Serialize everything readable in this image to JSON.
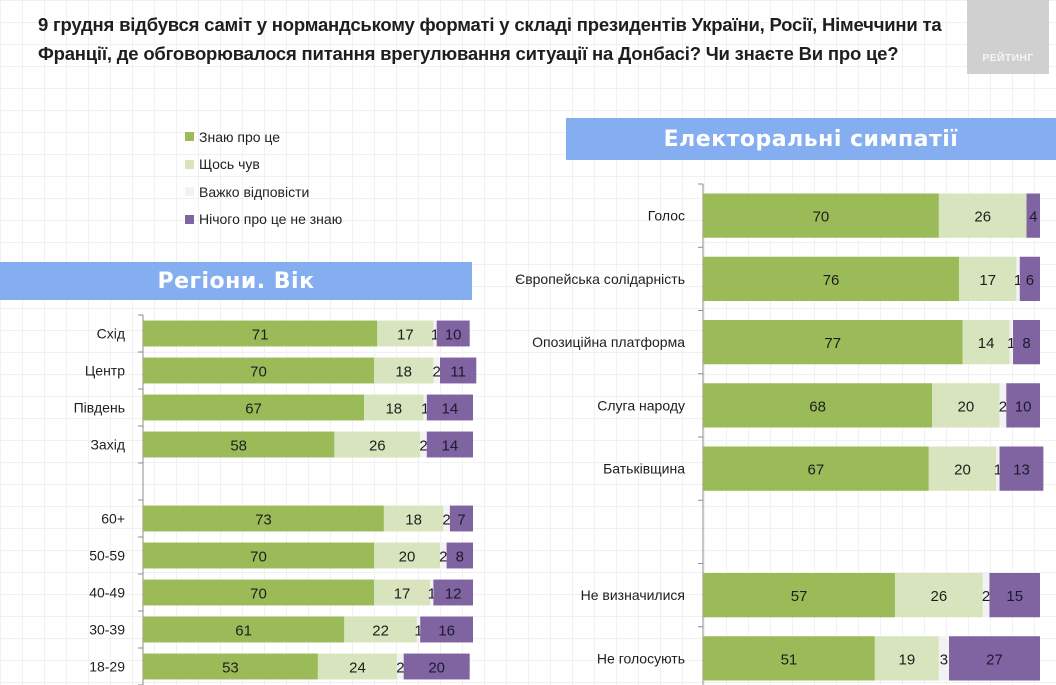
{
  "header": {
    "title": "9 грудня відбувся саміт у нормандському форматі у складі президентів України, Росії, Німеччини та Франції, де обговорювалося питання врегулювання ситуації на Донбасі? Чи знаєте Ви про це?",
    "logo_text": "РЕЙТИНГ"
  },
  "legend": [
    {
      "label": "Знаю про це",
      "color": "#9bbb59"
    },
    {
      "label": "Щось чув",
      "color": "#d7e4bd"
    },
    {
      "label": "Важко відповісти",
      "color": "#f2f2f2"
    },
    {
      "label": "Нічого про це не знаю",
      "color": "#8064a2"
    }
  ],
  "banners": {
    "left": "Регіони. Вік",
    "right": "Електоральні симпатії"
  },
  "chart_data": [
    {
      "type": "bar",
      "orientation": "horizontal",
      "stacked": true,
      "title": "Регіони. Вік",
      "categories": [
        "Схід",
        "Центр",
        "Південь",
        "Захід",
        "",
        "60+",
        "50-59",
        "40-49",
        "30-39",
        "18-29"
      ],
      "series": [
        {
          "name": "Знаю про це",
          "color": "#9bbb59",
          "values": [
            71,
            70,
            67,
            58,
            null,
            73,
            70,
            70,
            61,
            53
          ]
        },
        {
          "name": "Щось чув",
          "color": "#d7e4bd",
          "values": [
            17,
            18,
            18,
            26,
            null,
            18,
            20,
            17,
            22,
            24
          ]
        },
        {
          "name": "Важко відповісти",
          "color": "#f2f2f2",
          "values": [
            1,
            2,
            1,
            2,
            null,
            2,
            2,
            1,
            1,
            2
          ]
        },
        {
          "name": "Нічого про це не знаю",
          "color": "#8064a2",
          "values": [
            10,
            11,
            14,
            14,
            null,
            7,
            8,
            12,
            16,
            20
          ]
        }
      ],
      "xlim": [
        0,
        100
      ],
      "legend": "top-left"
    },
    {
      "type": "bar",
      "orientation": "horizontal",
      "stacked": true,
      "title": "Електоральні симпатії",
      "categories": [
        "Голос",
        "Європейська солідарність",
        "Опозиційна платформа",
        "Слуга народу",
        "Батьківщина",
        "",
        "Не визначилися",
        "Не голосують"
      ],
      "series": [
        {
          "name": "Знаю про це",
          "color": "#9bbb59",
          "values": [
            70,
            76,
            77,
            68,
            67,
            null,
            57,
            51
          ]
        },
        {
          "name": "Щось чув",
          "color": "#d7e4bd",
          "values": [
            26,
            17,
            14,
            20,
            20,
            null,
            26,
            19
          ]
        },
        {
          "name": "Важко відповісти",
          "color": "#f2f2f2",
          "values": [
            0,
            1,
            1,
            2,
            1,
            null,
            2,
            3
          ]
        },
        {
          "name": "Нічого про це не знаю",
          "color": "#8064a2",
          "values": [
            4,
            6,
            8,
            10,
            13,
            null,
            15,
            27
          ]
        }
      ],
      "xlim": [
        0,
        100
      ],
      "legend": "top-left"
    }
  ]
}
